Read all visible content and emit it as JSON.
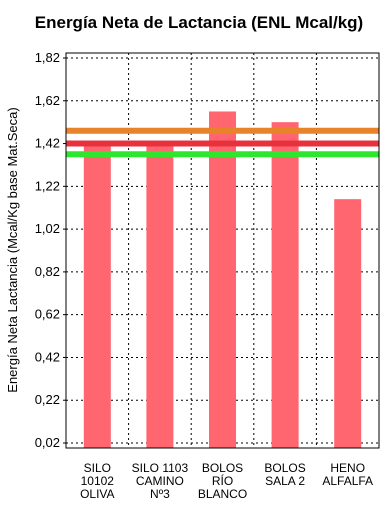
{
  "chart_data": {
    "type": "bar",
    "title": "Energía Neta de Lactancia (ENL Mcal/kg)",
    "ylabel": "Energía Neta Lactancia (Mcal/Kg base Mat.Seca)",
    "xlabel": "",
    "ylim": [
      0.02,
      1.82
    ],
    "yticks": [
      "0,02",
      "0,22",
      "0,42",
      "0,62",
      "0,82",
      "1,02",
      "1,22",
      "1,42",
      "1,62",
      "1,82"
    ],
    "ytick_values": [
      0.02,
      0.22,
      0.42,
      0.62,
      0.82,
      1.02,
      1.22,
      1.42,
      1.62,
      1.82
    ],
    "categories": [
      [
        "SILO",
        "10102",
        "OLIVA"
      ],
      [
        "SILO 1103",
        "CAMINO",
        "Nº3"
      ],
      [
        "BOLOS",
        "RÍO",
        "BLANCO"
      ],
      [
        "BOLOS",
        "SALA 2"
      ],
      [
        "HENO",
        "ALFALFA"
      ]
    ],
    "values": [
      1.43,
      1.43,
      1.57,
      1.52,
      1.16
    ],
    "reference_lines": [
      1.48,
      1.42,
      1.37
    ],
    "grid": true,
    "colors": {
      "bar": "#ff6670",
      "ref_lines": [
        "#e8832a",
        "#e8313c",
        "#2ee62e"
      ],
      "grid": "#000000"
    }
  }
}
